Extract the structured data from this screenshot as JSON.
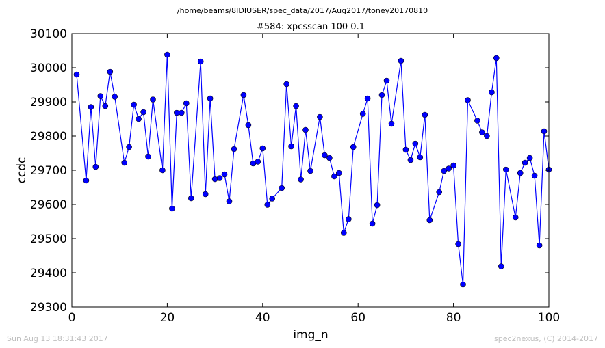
{
  "figure": {
    "suptitle": "/home/beams/8IDIUSER/spec_data/2017/Aug2017/toney20170810",
    "timestamp": "Sun Aug 13 18:31:43 2017",
    "credit": "spec2nexus, (C) 2014-2017"
  },
  "chart_data": {
    "type": "line",
    "title": "#584: xpcsscan 100 0.1",
    "xlabel": "img_n",
    "ylabel": "ccdc",
    "xlim": [
      0,
      100
    ],
    "ylim": [
      29300,
      30100
    ],
    "xticks": [
      0,
      20,
      40,
      60,
      80,
      100
    ],
    "yticks": [
      29300,
      29400,
      29500,
      29600,
      29700,
      29800,
      29900,
      30000,
      30100
    ],
    "grid": false,
    "line_color": "#0000ff",
    "marker": "circle",
    "series": [
      {
        "x": [
          1,
          3,
          4,
          5,
          6,
          7,
          8,
          9,
          11,
          12,
          13,
          14,
          15,
          16,
          17,
          19,
          20,
          21,
          22,
          23,
          24,
          25,
          27,
          28,
          29,
          30,
          31,
          32,
          33,
          34,
          36,
          37,
          38,
          39,
          40,
          41,
          42,
          44,
          45,
          46,
          47,
          48,
          49,
          50,
          52,
          53,
          54,
          55,
          56,
          57,
          58,
          59,
          61,
          62,
          63,
          64,
          65,
          66,
          67,
          69,
          70,
          71,
          72,
          73,
          74,
          75,
          77,
          78,
          79,
          80,
          81,
          82,
          83,
          85,
          86,
          87,
          88,
          89,
          90,
          91,
          93,
          94,
          95,
          96,
          97,
          98,
          99,
          100
        ],
        "y": [
          29980,
          29670,
          29885,
          29710,
          29917,
          29888,
          29988,
          29915,
          29722,
          29768,
          29892,
          29850,
          29870,
          29740,
          29907,
          29700,
          30038,
          29588,
          29868,
          29868,
          29896,
          29618,
          30018,
          29630,
          29910,
          29674,
          29677,
          29688,
          29609,
          29762,
          29920,
          29832,
          29720,
          29725,
          29764,
          29599,
          29617,
          29648,
          29952,
          29770,
          29888,
          29673,
          29818,
          29698,
          29856,
          29744,
          29736,
          29682,
          29692,
          29517,
          29557,
          29768,
          29865,
          29910,
          29544,
          29598,
          29920,
          29962,
          29836,
          30020,
          29760,
          29730,
          29778,
          29738,
          29862,
          29554,
          29636,
          29698,
          29705,
          29714,
          29484,
          29366,
          29905,
          29845,
          29811,
          29800,
          29928,
          30028,
          29419,
          29702,
          29562,
          29692,
          29722,
          29736,
          29684,
          29480,
          29814,
          29702
        ]
      }
    ]
  }
}
